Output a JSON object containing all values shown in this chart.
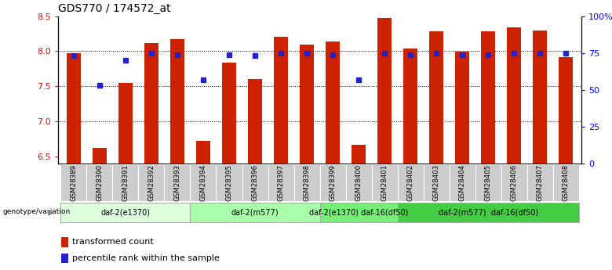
{
  "title": "GDS770 / 174572_at",
  "samples": [
    "GSM28389",
    "GSM28390",
    "GSM28391",
    "GSM28392",
    "GSM28393",
    "GSM28394",
    "GSM28395",
    "GSM28396",
    "GSM28397",
    "GSM28398",
    "GSM28399",
    "GSM28400",
    "GSM28401",
    "GSM28402",
    "GSM28403",
    "GSM28404",
    "GSM28405",
    "GSM28406",
    "GSM28407",
    "GSM28408"
  ],
  "transformed_count": [
    7.97,
    6.62,
    7.55,
    8.12,
    8.17,
    6.72,
    7.84,
    7.6,
    8.21,
    8.09,
    8.14,
    6.67,
    8.47,
    8.04,
    8.29,
    7.99,
    8.29,
    8.34,
    8.3,
    7.92
  ],
  "percentile_rank": [
    73,
    53,
    70,
    75,
    74,
    57,
    74,
    73,
    75,
    75,
    74,
    57,
    75,
    74,
    75,
    74,
    74,
    75,
    75,
    75
  ],
  "ylim_left": [
    6.4,
    8.5
  ],
  "ylim_right": [
    0,
    100
  ],
  "yticks_left": [
    6.5,
    7.0,
    7.5,
    8.0,
    8.5
  ],
  "yticks_right": [
    0,
    25,
    50,
    75,
    100
  ],
  "ytick_labels_right": [
    "0",
    "25",
    "50",
    "75",
    "100%"
  ],
  "bar_color": "#cc2200",
  "dot_color": "#2222cc",
  "groups": [
    {
      "label": "daf-2(e1370)",
      "start": 0,
      "end": 4,
      "color": "#ddffdd"
    },
    {
      "label": "daf-2(m577)",
      "start": 5,
      "end": 9,
      "color": "#aaffaa"
    },
    {
      "label": "daf-2(e1370) daf-16(df50)",
      "start": 10,
      "end": 12,
      "color": "#77ee77"
    },
    {
      "label": "daf-2(m577)  daf-16(df50)",
      "start": 13,
      "end": 19,
      "color": "#44cc44"
    }
  ],
  "legend_bar_label": "transformed count",
  "legend_dot_label": "percentile rank within the sample",
  "genotype_label": "genotype/variation",
  "bar_width": 0.55
}
